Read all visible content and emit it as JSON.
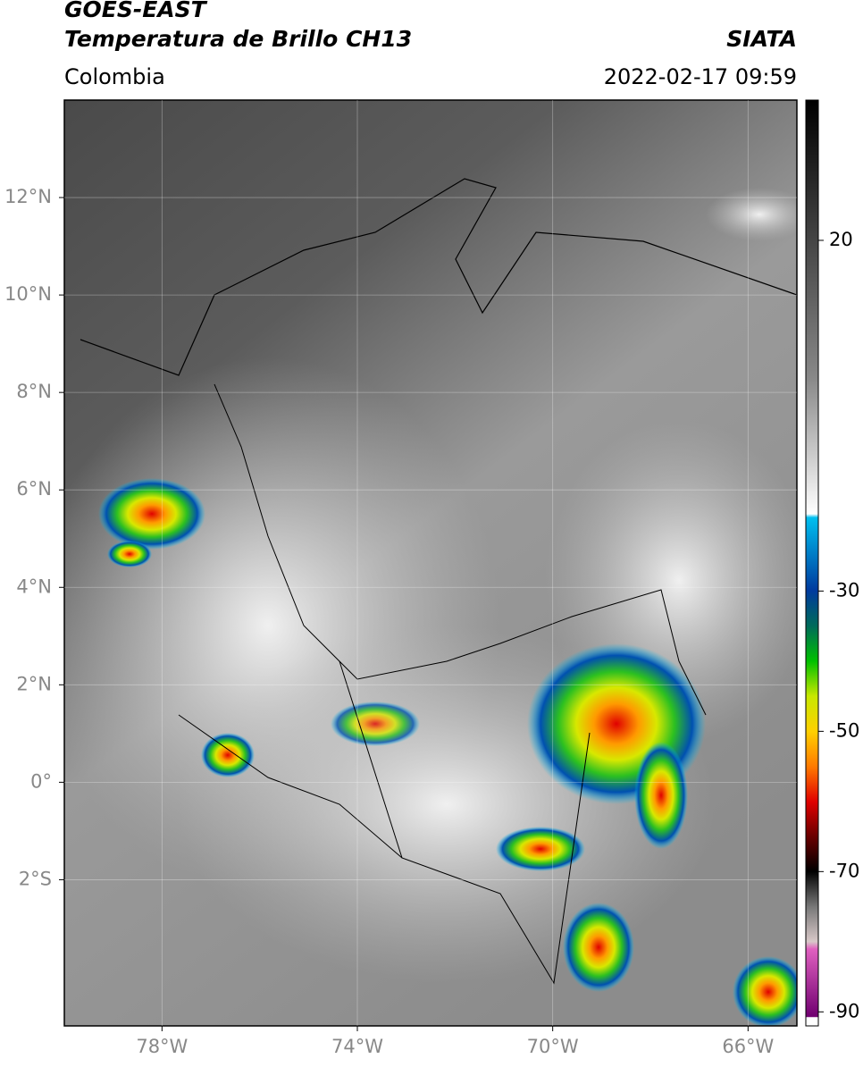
{
  "header": {
    "title": "GOES-EAST",
    "subtitle": "Temperatura de Brillo CH13",
    "source": "SIATA",
    "region": "Colombia",
    "datetime": "2022-02-17 09:59"
  },
  "map": {
    "xlim": [
      -80,
      -65
    ],
    "ylim": [
      -5,
      14
    ],
    "xticks": [
      {
        "value": -78,
        "label": "78°W"
      },
      {
        "value": -74,
        "label": "74°W"
      },
      {
        "value": -70,
        "label": "70°W"
      },
      {
        "value": -66,
        "label": "66°W"
      }
    ],
    "yticks": [
      {
        "value": 12,
        "label": "12°N"
      },
      {
        "value": 10,
        "label": "10°N"
      },
      {
        "value": 8,
        "label": "8°N"
      },
      {
        "value": 6,
        "label": "6°N"
      },
      {
        "value": 4,
        "label": "4°N"
      },
      {
        "value": 2,
        "label": "2°N"
      },
      {
        "value": 0,
        "label": "0°"
      },
      {
        "value": -2,
        "label": "2°S"
      }
    ],
    "grid": true
  },
  "colorbar": {
    "lim": [
      -92,
      40
    ],
    "ticks": [
      20,
      -30,
      -50,
      -70,
      -90
    ]
  }
}
